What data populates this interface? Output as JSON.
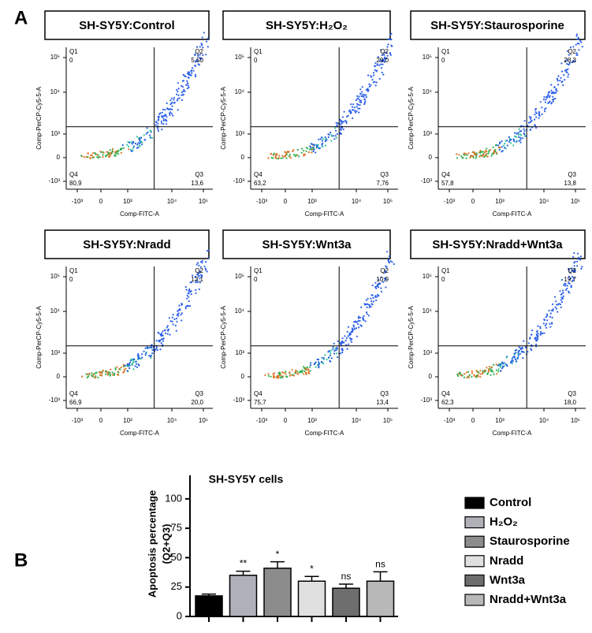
{
  "panel_labels": [
    "A",
    "B"
  ],
  "panel_a": {
    "x_axis_label": "Comp-FITC-A",
    "y_axis_label": "Comp-PerCP-Cy5-5-A",
    "xticks": [
      "-10³",
      "0",
      "10³",
      "10⁴",
      "10⁵"
    ],
    "yticks": [
      "10⁵",
      "10⁴",
      "10³",
      "0",
      "-10³"
    ],
    "plots": [
      {
        "title": "SH-SY5Y:Control",
        "quadrants": [
          {
            "name": "Q1",
            "value": "0"
          },
          {
            "name": "Q2",
            "value": "5,50"
          },
          {
            "name": "Q3",
            "value": "13,6"
          },
          {
            "name": "Q4",
            "value": "80,9"
          }
        ]
      },
      {
        "title": "SH-SY5Y:H₂O₂",
        "quadrants": [
          {
            "name": "Q1",
            "value": "0"
          },
          {
            "name": "Q2",
            "value": "29,0"
          },
          {
            "name": "Q3",
            "value": "7,76"
          },
          {
            "name": "Q4",
            "value": "63,2"
          }
        ]
      },
      {
        "title": "SH-SY5Y:Staurosporine",
        "quadrants": [
          {
            "name": "Q1",
            "value": "0"
          },
          {
            "name": "Q2",
            "value": "28,3"
          },
          {
            "name": "Q3",
            "value": "13,8"
          },
          {
            "name": "Q4",
            "value": "57,8"
          }
        ]
      },
      {
        "title": "SH-SY5Y:Nradd",
        "quadrants": [
          {
            "name": "Q1",
            "value": "0"
          },
          {
            "name": "Q2",
            "value": "13,1"
          },
          {
            "name": "Q3",
            "value": "20,0"
          },
          {
            "name": "Q4",
            "value": "66,9"
          }
        ]
      },
      {
        "title": "SH-SY5Y:Wnt3a",
        "quadrants": [
          {
            "name": "Q1",
            "value": "0"
          },
          {
            "name": "Q2",
            "value": "10,9"
          },
          {
            "name": "Q3",
            "value": "13,4"
          },
          {
            "name": "Q4",
            "value": "75,7"
          }
        ]
      },
      {
        "title": "SH-SY5Y:Nradd+Wnt3a",
        "quadrants": [
          {
            "name": "Q1",
            "value": "0"
          },
          {
            "name": "Q2",
            "value": "19,7"
          },
          {
            "name": "Q3",
            "value": "18,0"
          },
          {
            "name": "Q4",
            "value": "62,3"
          }
        ]
      }
    ]
  },
  "chart_data": {
    "type": "bar",
    "title": "SH-SY5Y cells",
    "y_label": [
      "Apoptosis  percentage",
      "(Q2+Q3)"
    ],
    "categories": [
      "Control",
      "H₂O₂",
      "Staurosporine",
      "Nradd",
      "Wnt3a",
      "Nradd+Wnt3a"
    ],
    "values": [
      17.5,
      35,
      41,
      30,
      24,
      30
    ],
    "errors": [
      1.5,
      3.5,
      5.5,
      4,
      3.5,
      8
    ],
    "annotations": [
      null,
      "**",
      "*",
      "*",
      "ns",
      "ns"
    ],
    "colors": [
      "#000000",
      "#b0b0b8",
      "#8c8c8c",
      "#e0e0e0",
      "#6e6e6e",
      "#b8b8b8"
    ],
    "ylim": [
      0,
      120
    ],
    "yticks": [
      0,
      25,
      50,
      75,
      100
    ],
    "legend": "right"
  }
}
